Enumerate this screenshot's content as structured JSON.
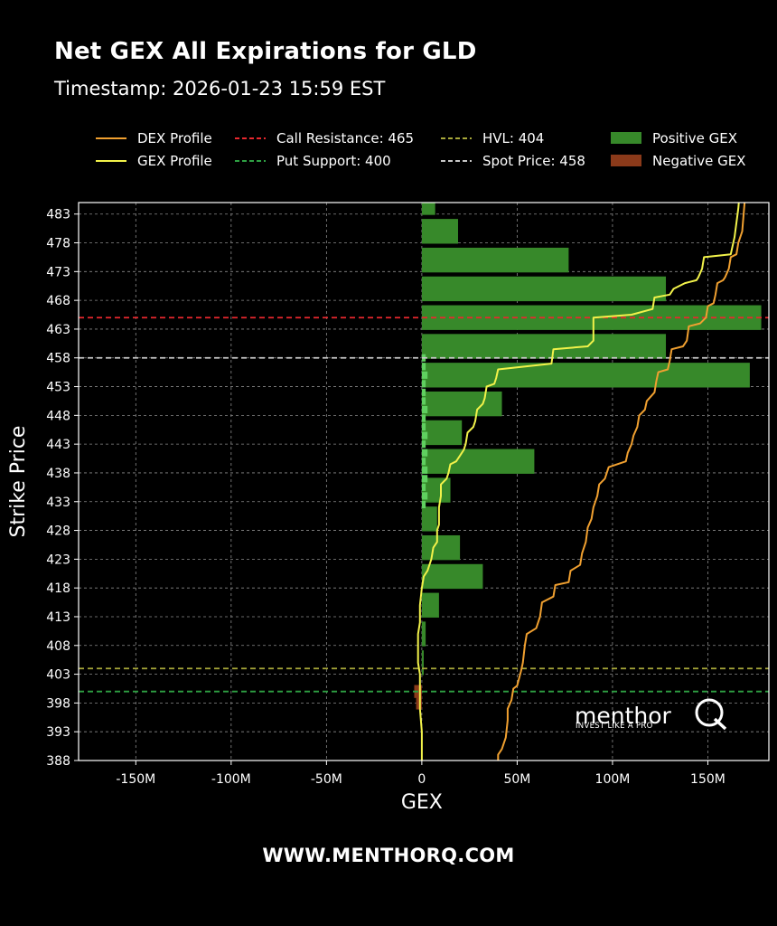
{
  "chart_data": {
    "type": "bar",
    "title": "Net GEX All Expirations for GLD",
    "subtitle": "Timestamp: 2026-01-23 15:59 EST",
    "xlabel": "GEX",
    "ylabel": "Strike Price",
    "orientation": "horizontal",
    "xlim": [
      -180,
      182
    ],
    "ylim": [
      388,
      485
    ],
    "x_unit": "M",
    "x_ticks": [
      -150,
      -100,
      -50,
      0,
      50,
      100,
      150
    ],
    "x_tick_labels": [
      "-150M",
      "-100M",
      "-50M",
      "0",
      "50M",
      "100M",
      "150M"
    ],
    "y_ticks": [
      388,
      393,
      398,
      403,
      408,
      413,
      418,
      423,
      428,
      433,
      438,
      443,
      448,
      453,
      458,
      463,
      468,
      473,
      478,
      483
    ],
    "grid": true,
    "legend_position": "top",
    "legend": [
      {
        "label": "DEX Profile",
        "style": "line",
        "color": "#f0a030"
      },
      {
        "label": "GEX Profile",
        "style": "line",
        "color": "#f2f24a"
      },
      {
        "label": "Call Resistance: 465",
        "style": "dashed",
        "color": "#e8282e"
      },
      {
        "label": "Put Support: 400",
        "style": "dashed",
        "color": "#2ea043"
      },
      {
        "label": "HVL: 404",
        "style": "dashed",
        "color": "#a8a83a"
      },
      {
        "label": "Spot Price: 458",
        "style": "dashed",
        "color": "#c8c8c8"
      },
      {
        "label": "Positive GEX",
        "style": "box",
        "color": "#37892a"
      },
      {
        "label": "Negative GEX",
        "style": "box",
        "color": "#8b3a1a"
      }
    ],
    "reference_lines": [
      {
        "name": "Call Resistance",
        "value": 465,
        "color": "#e8282e"
      },
      {
        "name": "Spot Price",
        "value": 458,
        "color": "#c8c8c8"
      },
      {
        "name": "HVL",
        "value": 404,
        "color": "#a8a83a"
      },
      {
        "name": "Put Support",
        "value": 400,
        "color": "#2ea043"
      }
    ],
    "gex_bars": [
      {
        "strike": 485,
        "value": 7
      },
      {
        "strike": 480,
        "value": 19
      },
      {
        "strike": 475,
        "value": 77
      },
      {
        "strike": 470,
        "value": 128
      },
      {
        "strike": 465,
        "value": 178
      },
      {
        "strike": 460,
        "value": 128
      },
      {
        "strike": 455,
        "value": 172
      },
      {
        "strike": 450,
        "value": 42
      },
      {
        "strike": 445,
        "value": 21
      },
      {
        "strike": 440,
        "value": 59
      },
      {
        "strike": 435,
        "value": 15
      },
      {
        "strike": 430,
        "value": 8
      },
      {
        "strike": 425,
        "value": 20
      },
      {
        "strike": 420,
        "value": 32
      },
      {
        "strike": 415,
        "value": 9
      },
      {
        "strike": 410,
        "value": 2
      },
      {
        "strike": 405,
        "value": 1
      },
      {
        "strike": 400,
        "value": -4
      },
      {
        "strike": 398,
        "value": -3
      }
    ],
    "gex_bright_bars": [
      {
        "strike": 458,
        "value": 2
      },
      {
        "strike": 456.5,
        "value": 2
      },
      {
        "strike": 455,
        "value": 3
      },
      {
        "strike": 453.5,
        "value": 2
      },
      {
        "strike": 452,
        "value": 2
      },
      {
        "strike": 450.5,
        "value": 2
      },
      {
        "strike": 449,
        "value": 3
      },
      {
        "strike": 447.5,
        "value": 2
      },
      {
        "strike": 446,
        "value": 2
      },
      {
        "strike": 444.5,
        "value": 3
      },
      {
        "strike": 443,
        "value": 2
      },
      {
        "strike": 441.5,
        "value": 3
      },
      {
        "strike": 440,
        "value": 2
      },
      {
        "strike": 438.5,
        "value": 3
      },
      {
        "strike": 437,
        "value": 3
      },
      {
        "strike": 435.5,
        "value": 2
      },
      {
        "strike": 434,
        "value": 3
      },
      {
        "strike": 432.5,
        "value": 2
      }
    ],
    "gex_profile": [
      [
        167,
        488
      ],
      [
        166,
        484
      ],
      [
        164,
        479
      ],
      [
        162,
        476
      ],
      [
        148,
        475.5
      ],
      [
        147,
        473.5
      ],
      [
        145,
        472
      ],
      [
        144,
        471.5
      ],
      [
        138,
        471
      ],
      [
        132,
        470
      ],
      [
        130,
        469
      ],
      [
        122,
        468.5
      ],
      [
        121,
        466.5
      ],
      [
        110,
        465.5
      ],
      [
        90,
        465
      ],
      [
        90,
        461
      ],
      [
        87,
        460
      ],
      [
        69,
        459.5
      ],
      [
        68,
        457
      ],
      [
        40,
        456
      ],
      [
        39,
        454.5
      ],
      [
        38,
        453.5
      ],
      [
        34,
        453
      ],
      [
        33,
        451
      ],
      [
        32,
        450
      ],
      [
        29,
        449
      ],
      [
        28,
        447
      ],
      [
        27,
        446
      ],
      [
        24,
        445
      ],
      [
        23,
        443
      ],
      [
        22,
        442
      ],
      [
        20,
        441
      ],
      [
        18,
        440
      ],
      [
        15,
        439.5
      ],
      [
        14,
        438
      ],
      [
        13,
        437
      ],
      [
        10,
        436
      ],
      [
        10,
        434
      ],
      [
        9,
        432
      ],
      [
        9,
        429
      ],
      [
        8,
        428
      ],
      [
        8,
        426
      ],
      [
        6,
        425
      ],
      [
        5,
        423
      ],
      [
        4,
        422
      ],
      [
        3,
        421
      ],
      [
        1,
        420
      ],
      [
        0,
        418
      ],
      [
        -1,
        415
      ],
      [
        -1,
        412
      ],
      [
        -2,
        410
      ],
      [
        -2,
        405
      ],
      [
        -1,
        403
      ],
      [
        -1,
        400
      ],
      [
        -1,
        397
      ],
      [
        0,
        393
      ],
      [
        0,
        388
      ]
    ],
    "dex_profile": [
      [
        170,
        488
      ],
      [
        168,
        480
      ],
      [
        166,
        478
      ],
      [
        165,
        476
      ],
      [
        162,
        475.5
      ],
      [
        161,
        473.5
      ],
      [
        159,
        472
      ],
      [
        158,
        471.5
      ],
      [
        155,
        471
      ],
      [
        154,
        469
      ],
      [
        153,
        467.5
      ],
      [
        150,
        467
      ],
      [
        149,
        465
      ],
      [
        146,
        464
      ],
      [
        140,
        463.5
      ],
      [
        139,
        461
      ],
      [
        137,
        460
      ],
      [
        131,
        459.5
      ],
      [
        130,
        457.5
      ],
      [
        129,
        456
      ],
      [
        124,
        455.5
      ],
      [
        123,
        454
      ],
      [
        122,
        452
      ],
      [
        118,
        450.5
      ],
      [
        117,
        449
      ],
      [
        114,
        448
      ],
      [
        113,
        446
      ],
      [
        111,
        444.5
      ],
      [
        110,
        443
      ],
      [
        108,
        441.5
      ],
      [
        107,
        440
      ],
      [
        98,
        439
      ],
      [
        96,
        437
      ],
      [
        93,
        436
      ],
      [
        92,
        434
      ],
      [
        90,
        432
      ],
      [
        89,
        430
      ],
      [
        87,
        428.5
      ],
      [
        86,
        426
      ],
      [
        84,
        424
      ],
      [
        83,
        422
      ],
      [
        78,
        421
      ],
      [
        77,
        419
      ],
      [
        70,
        418.5
      ],
      [
        69,
        416.5
      ],
      [
        63,
        415.5
      ],
      [
        62,
        413
      ],
      [
        60,
        411
      ],
      [
        55,
        410
      ],
      [
        54,
        408
      ],
      [
        53,
        405
      ],
      [
        52,
        403.5
      ],
      [
        50,
        401
      ],
      [
        48,
        400.5
      ],
      [
        47,
        398.5
      ],
      [
        45,
        397
      ],
      [
        45,
        395
      ],
      [
        44,
        392
      ],
      [
        42,
        390
      ],
      [
        40,
        389
      ],
      [
        40,
        387
      ]
    ]
  },
  "branding": {
    "logo_text": "menthor",
    "logo_mark": "Q",
    "logo_tagline": "INVEST LIKE A PRO",
    "footer_url": "WWW.MENTHORQ.COM"
  }
}
